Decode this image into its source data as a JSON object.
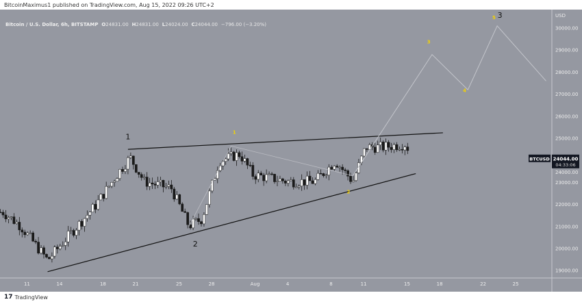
{
  "publisher_line": "BitcoinMaximus1 published on TradingView.com, Aug 15, 2022 09:26 UTC+2",
  "legend": {
    "symbol": "Bitcoin / U.S. Dollar, 6h, BITSTAMP",
    "o_label": "O",
    "o": "24831.00",
    "h_label": "H",
    "h": "24831.00",
    "l_label": "L",
    "l": "24024.00",
    "c_label": "C",
    "c": "24044.00",
    "change": "−796.00 (−3.20%)"
  },
  "price_tag": {
    "symbol": "BTCUSD",
    "price": "24044.00",
    "countdown": "04:33:06"
  },
  "footer": {
    "logo": "17",
    "brand": "TradingView"
  },
  "colors": {
    "bg": "#9598a1",
    "up": "#ffffff",
    "down": "#1a1a1a",
    "wave": "#f5d300",
    "proj": "#c4c6cc"
  },
  "chart_data": {
    "type": "candlestick",
    "currency_label": "USD",
    "ylim": [
      18700,
      30700
    ],
    "y_ticks": [
      19000,
      20000,
      21000,
      22000,
      23000,
      24000,
      25000,
      26000,
      27000,
      28000,
      29000,
      30000
    ],
    "y_tick_labels": [
      "19000.00",
      "20000.00",
      "21000.00",
      "22000.00",
      "23000.00",
      "24000.00",
      "25000.00",
      "26000.00",
      "27000.00",
      "28000.00",
      "29000.00",
      "30000.00"
    ],
    "x_ticks": [
      {
        "day": 11,
        "label": "11"
      },
      {
        "day": 14,
        "label": "14"
      },
      {
        "day": 18,
        "label": "18"
      },
      {
        "day": 21,
        "label": "21"
      },
      {
        "day": 25,
        "label": "25"
      },
      {
        "day": 28,
        "label": "28"
      },
      {
        "day": 32,
        "label": "Aug"
      },
      {
        "day": 35,
        "label": "4"
      },
      {
        "day": 39,
        "label": "8"
      },
      {
        "day": 42,
        "label": "11"
      },
      {
        "day": 46,
        "label": "15"
      },
      {
        "day": 49,
        "label": "18"
      },
      {
        "day": 53,
        "label": "22"
      },
      {
        "day": 56,
        "label": "25"
      }
    ],
    "x_unit": "day (July=1..31, Aug=32..)",
    "price_path": [
      [
        8.8,
        21650
      ],
      [
        10.4,
        21030
      ],
      [
        12.9,
        19470
      ],
      [
        14.8,
        20560
      ],
      [
        17.3,
        21950
      ],
      [
        19.5,
        23500
      ],
      [
        20.5,
        24130
      ],
      [
        21.8,
        23040
      ],
      [
        24.3,
        22730
      ],
      [
        25.9,
        21030
      ],
      [
        27.1,
        21340
      ],
      [
        28.7,
        23970
      ],
      [
        30.6,
        24290
      ],
      [
        31.8,
        23350
      ],
      [
        35,
        23040
      ],
      [
        37.5,
        23040
      ],
      [
        39.4,
        23970
      ],
      [
        41,
        23040
      ],
      [
        42.2,
        24600
      ],
      [
        43.8,
        24600
      ],
      [
        46,
        24750
      ],
      [
        46.2,
        24044
      ]
    ],
    "trendlines": [
      {
        "name": "resistance",
        "from": [
          20.3,
          24500
        ],
        "to": [
          49.3,
          25250
        ]
      },
      {
        "name": "support",
        "from": [
          12.9,
          18950
        ],
        "to": [
          46.8,
          23400
        ]
      }
    ],
    "projection": [
      [
        41,
        23300
      ],
      [
        48.3,
        28800
      ],
      [
        51.6,
        27200
      ],
      [
        54.3,
        30100
      ],
      [
        58.8,
        27600
      ]
    ],
    "projection_secondary": [
      [
        25.9,
        21000
      ],
      [
        29.8,
        24650
      ],
      [
        41,
        23300
      ]
    ],
    "wave_labels": [
      {
        "text": "1",
        "day": 30.1,
        "price": 25200,
        "color": "wave"
      },
      {
        "text": "2",
        "day": 40.6,
        "price": 22500,
        "color": "wave"
      },
      {
        "text": "3",
        "day": 48,
        "price": 29300,
        "color": "wave"
      },
      {
        "text": "4",
        "day": 51.3,
        "price": 27100,
        "color": "wave"
      },
      {
        "text": "5",
        "day": 54,
        "price": 30400,
        "color": "wave"
      },
      {
        "text": "1",
        "day": 20.3,
        "price": 24950,
        "color": "black"
      },
      {
        "text": "2",
        "day": 26.5,
        "price": 20100,
        "color": "black"
      },
      {
        "text": "3",
        "day": 54.3,
        "price": 30550,
        "color": "black"
      }
    ]
  }
}
